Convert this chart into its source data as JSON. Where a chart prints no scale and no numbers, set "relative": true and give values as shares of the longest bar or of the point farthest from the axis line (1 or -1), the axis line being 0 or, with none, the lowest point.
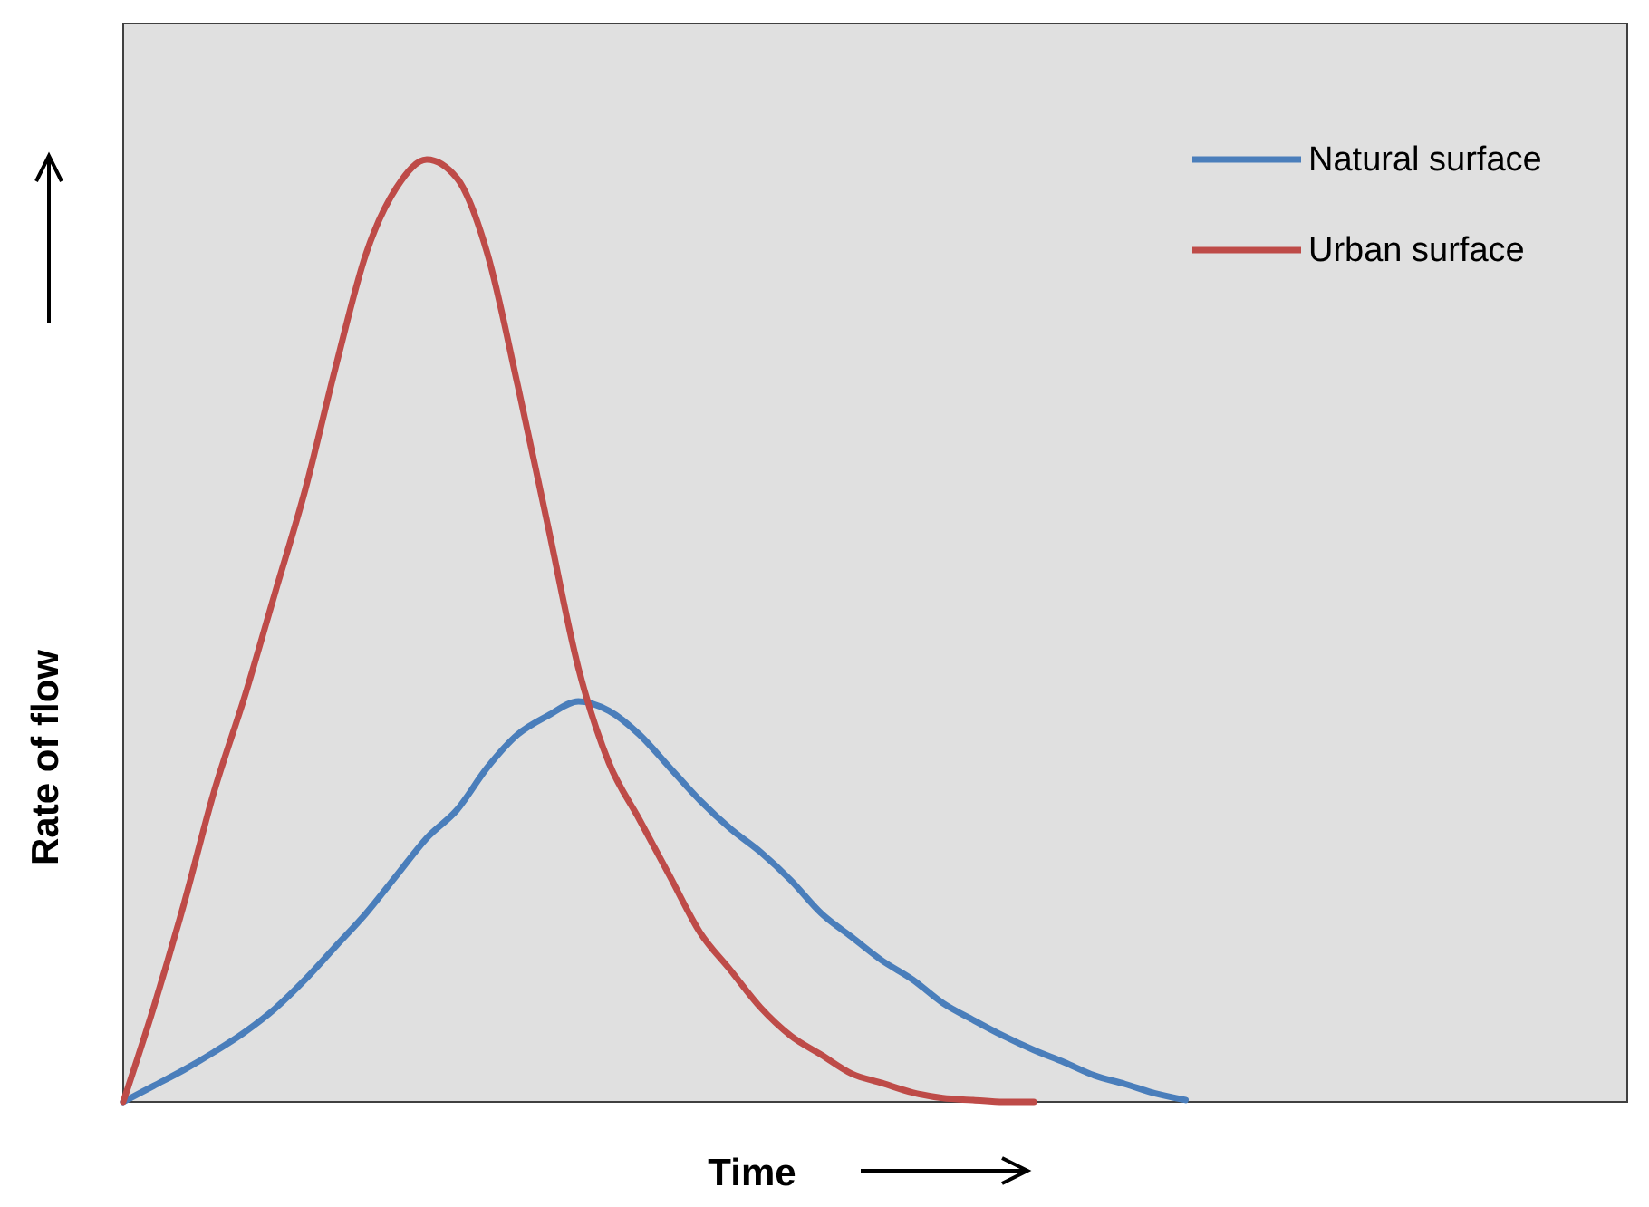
{
  "chart_data": {
    "type": "line",
    "relative": true,
    "xlabel": "Time",
    "ylabel": "Rate of flow",
    "legend": "top right",
    "categories": [
      null,
      null,
      null,
      null,
      null,
      null,
      null,
      null,
      null,
      null,
      null,
      null,
      null,
      null,
      null,
      null,
      null,
      null,
      null,
      null,
      null,
      null,
      null,
      null,
      null,
      null,
      null,
      null,
      null,
      null,
      null,
      null,
      null,
      null,
      null,
      null,
      null,
      null,
      null,
      null,
      null
    ],
    "series": [
      {
        "name": "Natural surface",
        "color": "#4a7ebb",
        "values": [
          0,
          0.017,
          0.034,
          0.053,
          0.074,
          0.099,
          0.13,
          0.165,
          0.2,
          0.24,
          0.28,
          0.31,
          0.355,
          0.39,
          0.41,
          0.425,
          0.415,
          0.39,
          0.355,
          0.32,
          0.29,
          0.265,
          0.235,
          0.2,
          0.175,
          0.15,
          0.13,
          0.105,
          0.087,
          0.07,
          0.055,
          0.042,
          0.028,
          0.019,
          0.009,
          0.002,
          null,
          null,
          null,
          null,
          null
        ]
      },
      {
        "name": "Urban surface",
        "color": "#be4b48",
        "values": [
          0,
          0.1,
          0.21,
          0.33,
          0.43,
          0.54,
          0.65,
          0.78,
          0.9,
          0.97,
          1,
          0.98,
          0.9,
          0.76,
          0.61,
          0.46,
          0.36,
          0.3,
          0.24,
          0.18,
          0.14,
          0.1,
          0.07,
          0.05,
          0.03,
          0.02,
          0.01,
          0.004,
          0.002,
          0,
          0,
          null,
          null,
          null,
          null,
          null,
          null,
          null,
          null,
          null,
          null
        ]
      }
    ]
  }
}
